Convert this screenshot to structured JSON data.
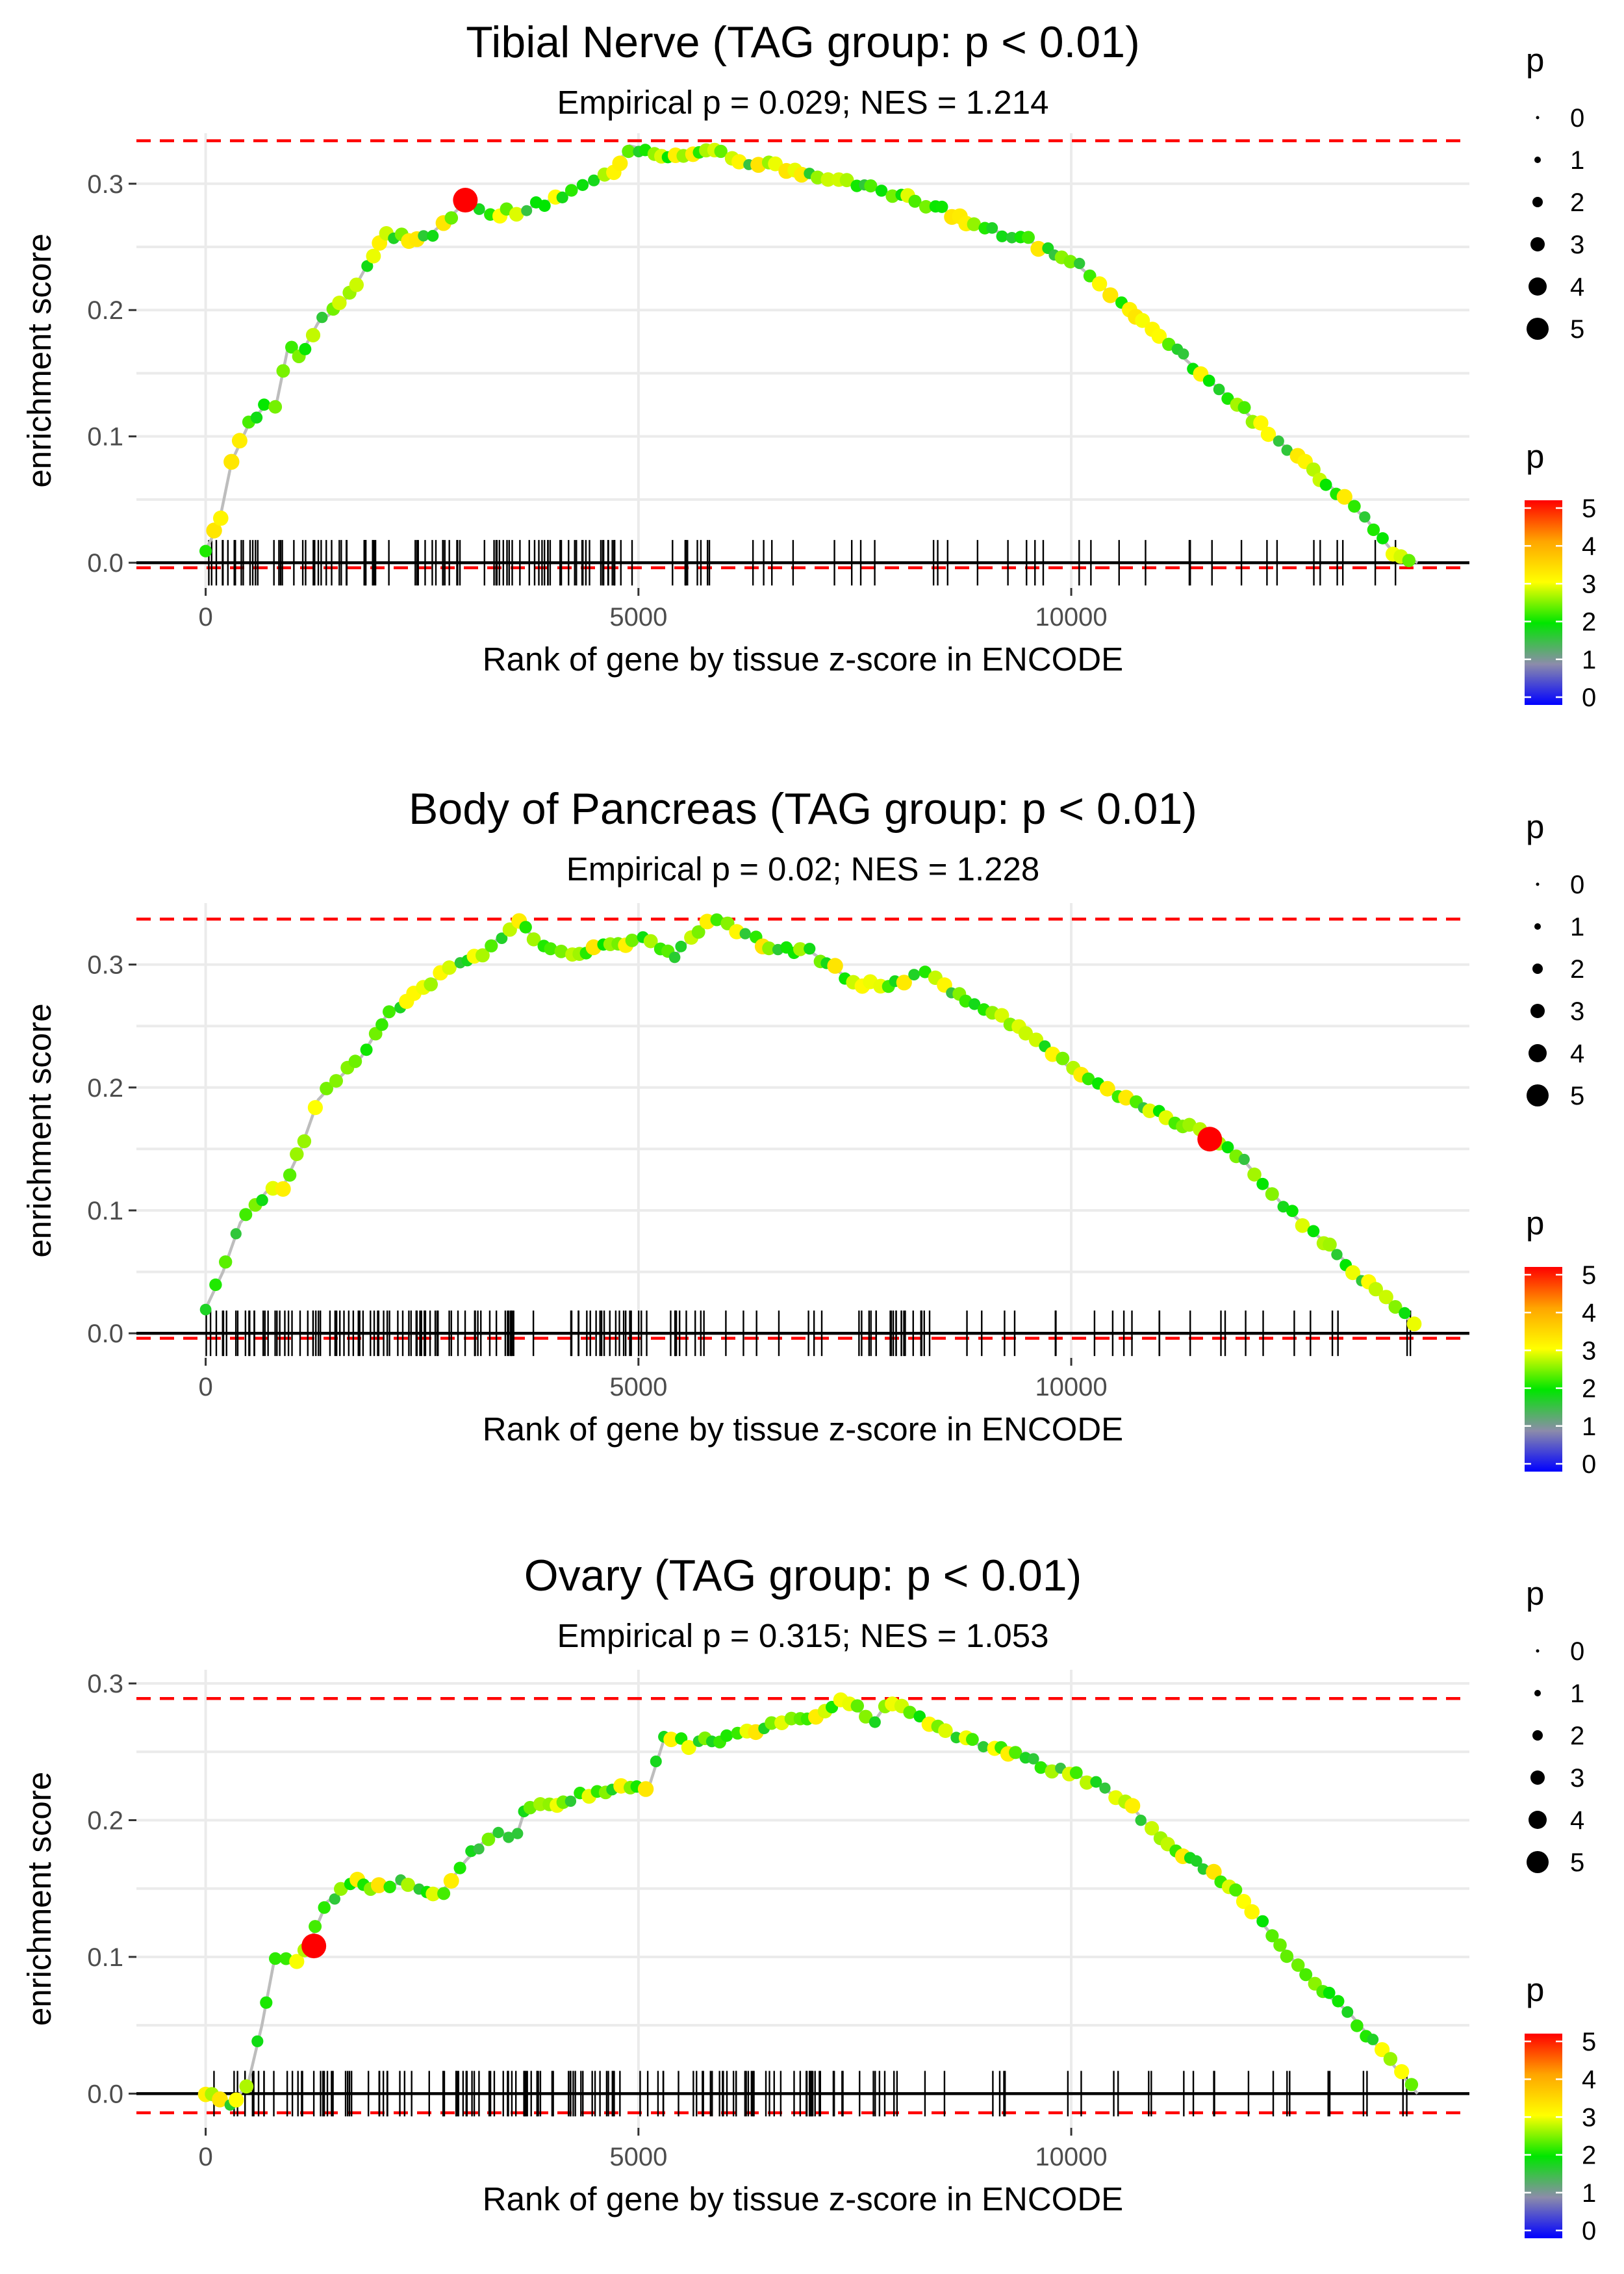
{
  "chart_data": [
    {
      "type": "line",
      "title": "Tibial Nerve (TAG group: p < 0.01)",
      "subtitle": "Empirical p = 0.029; NES = 1.214",
      "xlabel": "Rank of gene by tissue z-score in ENCODE",
      "ylabel": "enrichment score",
      "xlim": [
        -800,
        14600
      ],
      "ylim": [
        -0.02,
        0.34
      ],
      "xticks": [
        0,
        5000,
        10000
      ],
      "xtick_labels": [
        "0",
        "5000",
        "10000"
      ],
      "yticks": [
        0.0,
        0.1,
        0.2,
        0.3
      ],
      "ytick_labels": [
        "0.0",
        "0.1",
        "0.2",
        "0.3"
      ],
      "max_es_line": 0.334,
      "min_es_line": -0.004,
      "n_genes": 14000,
      "curve": [
        [
          0,
          0.01
        ],
        [
          150,
          0.03
        ],
        [
          300,
          0.08
        ],
        [
          500,
          0.11
        ],
        [
          700,
          0.125
        ],
        [
          800,
          0.12
        ],
        [
          950,
          0.17
        ],
        [
          1100,
          0.165
        ],
        [
          1300,
          0.19
        ],
        [
          1500,
          0.2
        ],
        [
          1700,
          0.215
        ],
        [
          1900,
          0.24
        ],
        [
          2100,
          0.26
        ],
        [
          2400,
          0.255
        ],
        [
          2600,
          0.26
        ],
        [
          3000,
          0.285
        ],
        [
          3300,
          0.275
        ],
        [
          3700,
          0.28
        ],
        [
          4100,
          0.29
        ],
        [
          4400,
          0.3
        ],
        [
          4700,
          0.31
        ],
        [
          4900,
          0.33
        ],
        [
          5200,
          0.325
        ],
        [
          5500,
          0.32
        ],
        [
          5800,
          0.33
        ],
        [
          6100,
          0.32
        ],
        [
          6500,
          0.315
        ],
        [
          7000,
          0.305
        ],
        [
          7500,
          0.3
        ],
        [
          8000,
          0.29
        ],
        [
          8500,
          0.28
        ],
        [
          9000,
          0.265
        ],
        [
          9500,
          0.255
        ],
        [
          10000,
          0.24
        ],
        [
          10500,
          0.21
        ],
        [
          11000,
          0.18
        ],
        [
          11500,
          0.15
        ],
        [
          12000,
          0.12
        ],
        [
          12500,
          0.09
        ],
        [
          13000,
          0.06
        ],
        [
          13400,
          0.035
        ],
        [
          13700,
          0.01
        ],
        [
          14000,
          0.0
        ]
      ],
      "highlight_point": {
        "x": 3000,
        "y": 0.287,
        "p": 5
      },
      "legend_size": {
        "title": "p",
        "labels": [
          "0",
          "1",
          "2",
          "3",
          "4",
          "5"
        ]
      },
      "legend_color": {
        "title": "p",
        "labels": [
          "5",
          "4",
          "3",
          "2",
          "1",
          "0"
        ]
      }
    },
    {
      "type": "line",
      "title": "Body of Pancreas (TAG group: p < 0.01)",
      "subtitle": "Empirical p = 0.02; NES = 1.228",
      "xlabel": "Rank of gene by tissue z-score in ENCODE",
      "ylabel": "enrichment score",
      "xlim": [
        -800,
        14600
      ],
      "ylim": [
        -0.02,
        0.35
      ],
      "xticks": [
        0,
        5000,
        10000
      ],
      "xtick_labels": [
        "0",
        "5000",
        "10000"
      ],
      "yticks": [
        0.0,
        0.1,
        0.2,
        0.3
      ],
      "ytick_labels": [
        "0.0",
        "0.1",
        "0.2",
        "0.3"
      ],
      "max_es_line": 0.337,
      "min_es_line": -0.004,
      "n_genes": 14000,
      "curve": [
        [
          0,
          0.02
        ],
        [
          200,
          0.05
        ],
        [
          400,
          0.09
        ],
        [
          700,
          0.115
        ],
        [
          900,
          0.12
        ],
        [
          1100,
          0.15
        ],
        [
          1300,
          0.19
        ],
        [
          1500,
          0.205
        ],
        [
          1800,
          0.225
        ],
        [
          2100,
          0.26
        ],
        [
          2500,
          0.28
        ],
        [
          2800,
          0.295
        ],
        [
          3200,
          0.31
        ],
        [
          3600,
          0.335
        ],
        [
          3900,
          0.315
        ],
        [
          4300,
          0.31
        ],
        [
          4700,
          0.315
        ],
        [
          5100,
          0.32
        ],
        [
          5400,
          0.305
        ],
        [
          5800,
          0.338
        ],
        [
          6100,
          0.33
        ],
        [
          6500,
          0.315
        ],
        [
          7000,
          0.31
        ],
        [
          7500,
          0.285
        ],
        [
          8000,
          0.285
        ],
        [
          8300,
          0.295
        ],
        [
          8700,
          0.275
        ],
        [
          9100,
          0.26
        ],
        [
          9500,
          0.245
        ],
        [
          10000,
          0.215
        ],
        [
          10500,
          0.195
        ],
        [
          11000,
          0.18
        ],
        [
          11600,
          0.16
        ],
        [
          12000,
          0.14
        ],
        [
          12500,
          0.1
        ],
        [
          13000,
          0.07
        ],
        [
          13500,
          0.035
        ],
        [
          14000,
          0.005
        ]
      ],
      "highlight_point": {
        "x": 11600,
        "y": 0.158,
        "p": 5
      },
      "legend_size": {
        "title": "p",
        "labels": [
          "0",
          "1",
          "2",
          "3",
          "4",
          "5"
        ]
      },
      "legend_color": {
        "title": "p",
        "labels": [
          "5",
          "4",
          "3",
          "2",
          "1",
          "0"
        ]
      }
    },
    {
      "type": "line",
      "title": "Ovary (TAG group: p < 0.01)",
      "subtitle": "Empirical p = 0.315; NES = 1.053",
      "xlabel": "Rank of gene by tissue z-score in ENCODE",
      "ylabel": "enrichment score",
      "xlim": [
        -800,
        14600
      ],
      "ylim": [
        -0.025,
        0.31
      ],
      "xticks": [
        0,
        5000,
        10000
      ],
      "xtick_labels": [
        "0",
        "5000",
        "10000"
      ],
      "yticks": [
        0.0,
        0.1,
        0.2,
        0.3
      ],
      "ytick_labels": [
        "0.0",
        "0.1",
        "0.2",
        "0.3"
      ],
      "max_es_line": 0.289,
      "min_es_line": -0.014,
      "n_genes": 14000,
      "curve": [
        [
          0,
          0.0
        ],
        [
          300,
          -0.01
        ],
        [
          500,
          0.01
        ],
        [
          650,
          0.05
        ],
        [
          800,
          0.1
        ],
        [
          1000,
          0.095
        ],
        [
          1200,
          0.11
        ],
        [
          1400,
          0.14
        ],
        [
          1700,
          0.155
        ],
        [
          2000,
          0.15
        ],
        [
          2300,
          0.155
        ],
        [
          2700,
          0.145
        ],
        [
          3000,
          0.17
        ],
        [
          3300,
          0.19
        ],
        [
          3600,
          0.19
        ],
        [
          3700,
          0.21
        ],
        [
          4000,
          0.21
        ],
        [
          4400,
          0.22
        ],
        [
          4800,
          0.225
        ],
        [
          5100,
          0.22
        ],
        [
          5300,
          0.26
        ],
        [
          5600,
          0.255
        ],
        [
          6000,
          0.26
        ],
        [
          6500,
          0.27
        ],
        [
          7000,
          0.275
        ],
        [
          7400,
          0.29
        ],
        [
          7700,
          0.27
        ],
        [
          7900,
          0.288
        ],
        [
          8300,
          0.275
        ],
        [
          8700,
          0.26
        ],
        [
          9200,
          0.25
        ],
        [
          9700,
          0.24
        ],
        [
          10200,
          0.23
        ],
        [
          10700,
          0.21
        ],
        [
          11100,
          0.18
        ],
        [
          11600,
          0.165
        ],
        [
          12000,
          0.14
        ],
        [
          12400,
          0.11
        ],
        [
          12800,
          0.08
        ],
        [
          13200,
          0.06
        ],
        [
          13600,
          0.03
        ],
        [
          14000,
          0.0
        ]
      ],
      "highlight_point": {
        "x": 1250,
        "y": 0.108,
        "p": 5
      },
      "legend_size": {
        "title": "p",
        "labels": [
          "0",
          "1",
          "2",
          "3",
          "4",
          "5"
        ]
      },
      "legend_color": {
        "title": "p",
        "labels": [
          "5",
          "4",
          "3",
          "2",
          "1",
          "0"
        ]
      }
    }
  ]
}
